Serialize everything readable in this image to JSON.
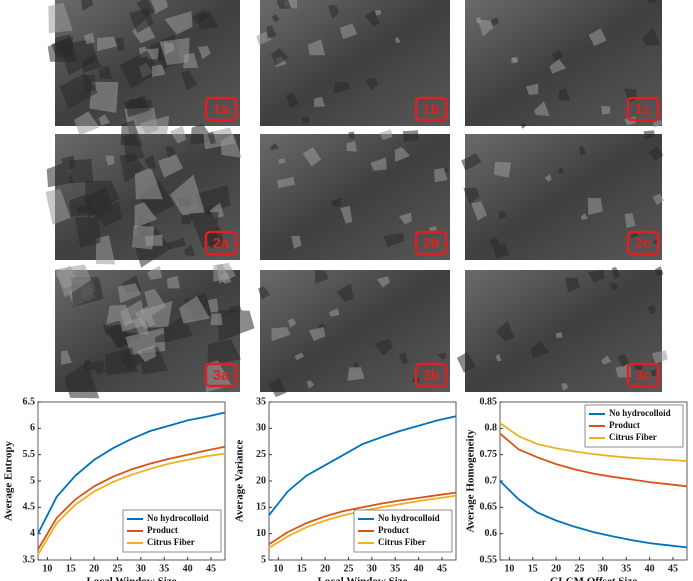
{
  "panels": [
    "1a",
    "1b",
    "1c",
    "2a",
    "2b",
    "2c",
    "3a",
    "3b",
    "3c"
  ],
  "chart_data": [
    {
      "type": "line",
      "x_label": "Local Window Size",
      "y_label": "Average Entropy",
      "x": [
        8,
        12,
        16,
        20,
        24,
        28,
        32,
        36,
        40,
        44,
        48
      ],
      "xlim": [
        8,
        48
      ],
      "xticks": [
        10,
        15,
        20,
        25,
        30,
        35,
        40,
        45
      ],
      "ylim": [
        3.5,
        6.5
      ],
      "yticks": [
        3.5,
        4,
        4.5,
        5,
        5.5,
        6,
        6.5
      ],
      "legend": "lower right",
      "series": [
        {
          "name": "No hydrocolloid",
          "color": "#0072bd",
          "values": [
            4.0,
            4.7,
            5.1,
            5.4,
            5.62,
            5.8,
            5.95,
            6.05,
            6.15,
            6.22,
            6.3
          ]
        },
        {
          "name": "Product",
          "color": "#d95319",
          "values": [
            3.7,
            4.3,
            4.65,
            4.9,
            5.08,
            5.22,
            5.33,
            5.42,
            5.5,
            5.58,
            5.65
          ]
        },
        {
          "name": "Citrus Fiber",
          "color": "#edb120",
          "values": [
            3.6,
            4.2,
            4.55,
            4.8,
            4.98,
            5.12,
            5.23,
            5.33,
            5.4,
            5.47,
            5.52
          ]
        }
      ]
    },
    {
      "type": "line",
      "x_label": "Local Window Size",
      "y_label": "Average Variance",
      "x": [
        8,
        12,
        16,
        20,
        24,
        28,
        32,
        36,
        40,
        44,
        48
      ],
      "xlim": [
        8,
        48
      ],
      "xticks": [
        10,
        15,
        20,
        25,
        30,
        35,
        40,
        45
      ],
      "ylim": [
        5,
        35
      ],
      "yticks": [
        5,
        10,
        15,
        20,
        25,
        30,
        35
      ],
      "legend": "lower right",
      "series": [
        {
          "name": "No hydrocolloid",
          "color": "#0072bd",
          "values": [
            13.5,
            18,
            21,
            23,
            25,
            27,
            28.3,
            29.5,
            30.5,
            31.5,
            32.3
          ]
        },
        {
          "name": "Product",
          "color": "#d95319",
          "values": [
            8,
            10.3,
            12,
            13.3,
            14.3,
            15,
            15.7,
            16.3,
            16.8,
            17.3,
            17.8
          ]
        },
        {
          "name": "Citrus Fiber",
          "color": "#edb120",
          "values": [
            7.3,
            9.5,
            11.2,
            12.5,
            13.5,
            14.3,
            15,
            15.6,
            16.2,
            16.7,
            17.2
          ]
        }
      ]
    },
    {
      "type": "line",
      "x_label": "GLCM Offset Size",
      "y_label": "Average Homogeneity",
      "x": [
        8,
        12,
        16,
        20,
        24,
        28,
        32,
        36,
        40,
        44,
        48
      ],
      "xlim": [
        8,
        48
      ],
      "xticks": [
        10,
        15,
        20,
        25,
        30,
        35,
        40,
        45
      ],
      "ylim": [
        0.55,
        0.85
      ],
      "yticks": [
        0.55,
        0.6,
        0.65,
        0.7,
        0.75,
        0.8,
        0.85
      ],
      "legend": "upper right",
      "series": [
        {
          "name": "No hydrocolloid",
          "color": "#0072bd",
          "values": [
            0.7,
            0.665,
            0.64,
            0.625,
            0.613,
            0.603,
            0.595,
            0.588,
            0.582,
            0.578,
            0.574
          ]
        },
        {
          "name": "Product",
          "color": "#d95319",
          "values": [
            0.79,
            0.76,
            0.745,
            0.732,
            0.722,
            0.714,
            0.708,
            0.703,
            0.698,
            0.694,
            0.69
          ]
        },
        {
          "name": "Citrus Fiber",
          "color": "#edb120",
          "values": [
            0.81,
            0.785,
            0.77,
            0.762,
            0.756,
            0.751,
            0.747,
            0.744,
            0.742,
            0.74,
            0.738
          ]
        }
      ]
    }
  ]
}
